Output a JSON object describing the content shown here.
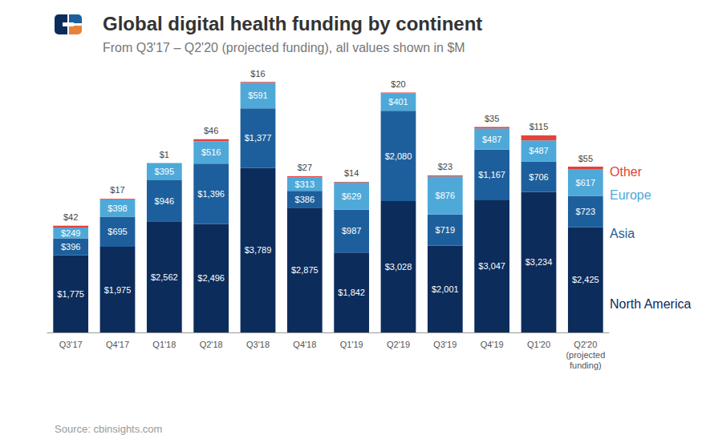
{
  "chart_data": {
    "type": "bar",
    "title": "Global digital health funding by continent",
    "subtitle": "From Q3'17 – Q2'20 (projected funding), all values shown in $M",
    "source": "Source: cbinsights.com",
    "categories": [
      "Q3'17",
      "Q4'17",
      "Q1'18",
      "Q2'18",
      "Q3'18",
      "Q4'18",
      "Q1'19",
      "Q2'19",
      "Q3'19",
      "Q4'19",
      "Q1'20",
      "Q2'20\n(projected\nfunding)"
    ],
    "series": [
      {
        "name": "North America",
        "color": "#0c2c5c",
        "values": [
          1775,
          1975,
          2562,
          2496,
          3789,
          2875,
          1842,
          3028,
          2001,
          3047,
          3234,
          2425
        ],
        "value_labels": [
          "$1,775",
          "$1,975",
          "$2,562",
          "$2,496",
          "$3,789",
          "$2,875",
          "$1,842",
          "$3,028",
          "$2,001",
          "$3,047",
          "$3,234",
          "$2,425"
        ]
      },
      {
        "name": "Asia",
        "color": "#1d5f9c",
        "values": [
          396,
          695,
          946,
          1396,
          1377,
          386,
          987,
          2080,
          719,
          1167,
          706,
          723
        ],
        "value_labels": [
          "$396",
          "$695",
          "$946",
          "$1,396",
          "$1,377",
          "$386",
          "$987",
          "$2,080",
          "$719",
          "$1,167",
          "$706",
          "$723"
        ]
      },
      {
        "name": "Europe",
        "color": "#4ea9d9",
        "values": [
          249,
          398,
          395,
          516,
          591,
          313,
          629,
          401,
          876,
          487,
          487,
          617
        ],
        "value_labels": [
          "$249",
          "$398",
          "$395",
          "$516",
          "$591",
          "$313",
          "$629",
          "$401",
          "$876",
          "$487",
          "$487",
          "$617"
        ]
      },
      {
        "name": "Other",
        "color": "#e5413b",
        "values": [
          42,
          17,
          1,
          46,
          16,
          27,
          14,
          20,
          23,
          35,
          115,
          55
        ],
        "value_labels": [
          "$42",
          "$17",
          "$1",
          "$46",
          "$16",
          "$27",
          "$14",
          "$20",
          "$23",
          "$35",
          "$115",
          "$55"
        ]
      }
    ],
    "ylim": [
      0,
      6000
    ],
    "stacked": true,
    "data_labels": true,
    "tick_labels": "x",
    "legend": "right",
    "grid": false
  }
}
